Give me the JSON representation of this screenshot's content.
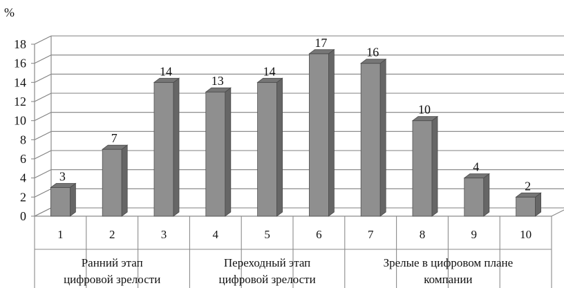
{
  "chart_data": {
    "type": "bar",
    "y_unit": "%",
    "categories": [
      "1",
      "2",
      "3",
      "4",
      "5",
      "6",
      "7",
      "8",
      "9",
      "10"
    ],
    "values": [
      3,
      7,
      14,
      13,
      14,
      17,
      16,
      10,
      4,
      2
    ],
    "ylim": [
      0,
      18
    ],
    "yticks": [
      0,
      2,
      4,
      6,
      8,
      10,
      12,
      14,
      16,
      18
    ],
    "grid": true,
    "groups": [
      {
        "label_lines": [
          "Ранний этап",
          "цифровой зрелости"
        ],
        "categories": [
          "1",
          "2",
          "3"
        ]
      },
      {
        "label_lines": [
          "Переходный этап",
          "цифровой зрелости"
        ],
        "categories": [
          "4",
          "5",
          "6"
        ]
      },
      {
        "label_lines": [
          "Зрелые в цифровом плане",
          "компании"
        ],
        "categories": [
          "7",
          "8",
          "9",
          "10"
        ]
      }
    ],
    "colors": {
      "bar_front": "#8f8f8f",
      "bar_side": "#666666",
      "bar_top": "#767676",
      "grid": "#7f7f7f",
      "axis": "#8a8a8a",
      "text": "#111111"
    }
  }
}
